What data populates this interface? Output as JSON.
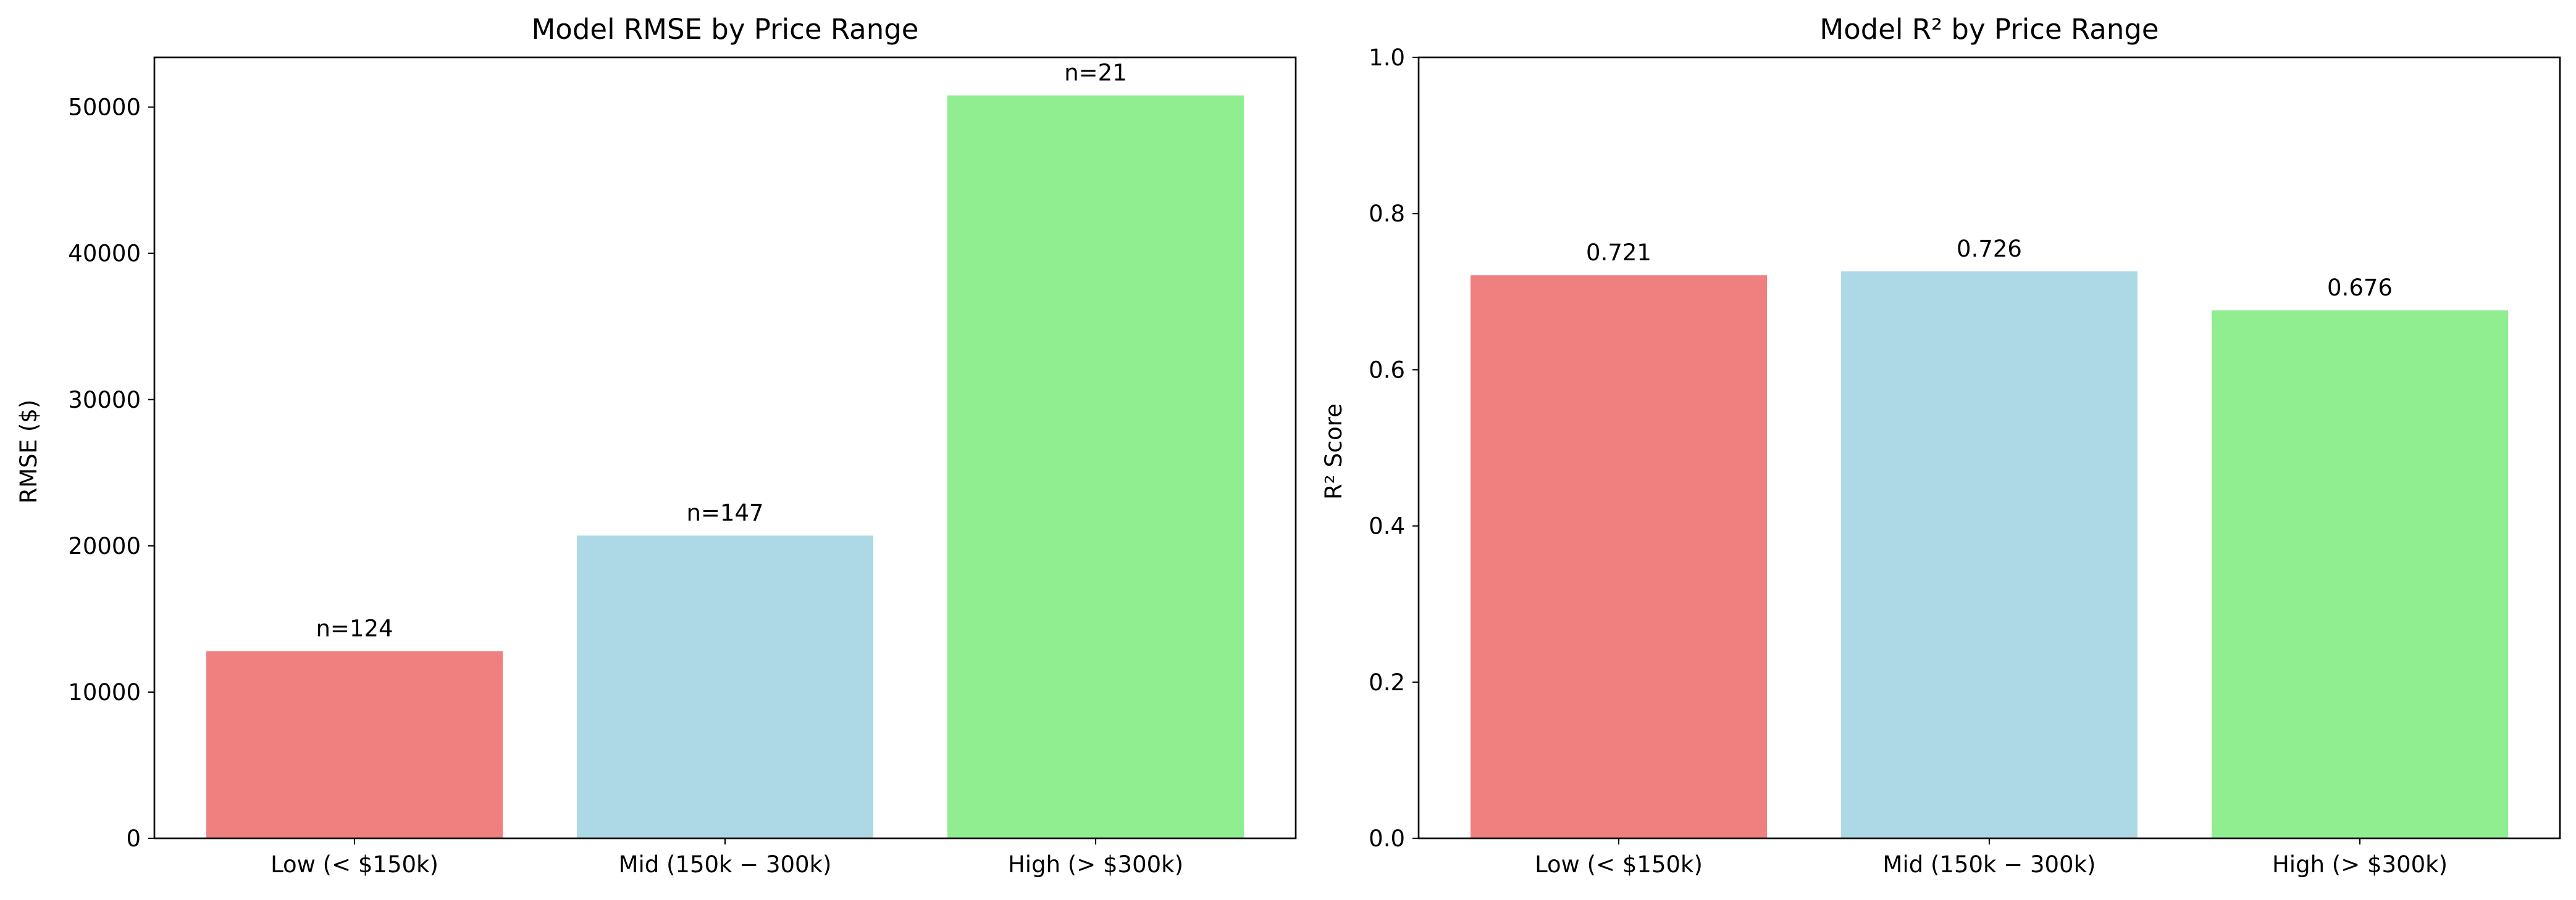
{
  "chart_data": [
    {
      "type": "bar",
      "title": "Model RMSE by Price Range",
      "xlabel": "",
      "ylabel": "RMSE ($)",
      "categories": [
        "Low (< $150k)",
        "Mid ($150k-$300k)",
        "High (> $300k)"
      ],
      "tick_labels": [
        "Low (< $150k)",
        "Mid (150k − 300k)",
        "High (> $300k)"
      ],
      "values": [
        12800,
        20700,
        50800
      ],
      "bar_labels": [
        "n=124",
        "n=147",
        "n=21"
      ],
      "colors": [
        "#f08080",
        "#add8e6",
        "#90ee90"
      ],
      "ylim": [
        0,
        53400
      ],
      "yticks": [
        0,
        10000,
        20000,
        30000,
        40000,
        50000
      ],
      "grid": false,
      "legend": "none"
    },
    {
      "type": "bar",
      "title": "Model R² by Price Range",
      "xlabel": "",
      "ylabel": "R² Score",
      "categories": [
        "Low (< $150k)",
        "Mid ($150k-$300k)",
        "High (> $300k)"
      ],
      "tick_labels": [
        "Low (< $150k)",
        "Mid (150k − 300k)",
        "High (> $300k)"
      ],
      "values": [
        0.721,
        0.726,
        0.676
      ],
      "bar_labels": [
        "0.721",
        "0.726",
        "0.676"
      ],
      "colors": [
        "#f08080",
        "#add8e6",
        "#90ee90"
      ],
      "ylim": [
        0,
        1.0
      ],
      "yticks": [
        "0.0",
        "0.2",
        "0.4",
        "0.6",
        "0.8",
        "1.0"
      ],
      "grid": false,
      "legend": "none"
    }
  ]
}
